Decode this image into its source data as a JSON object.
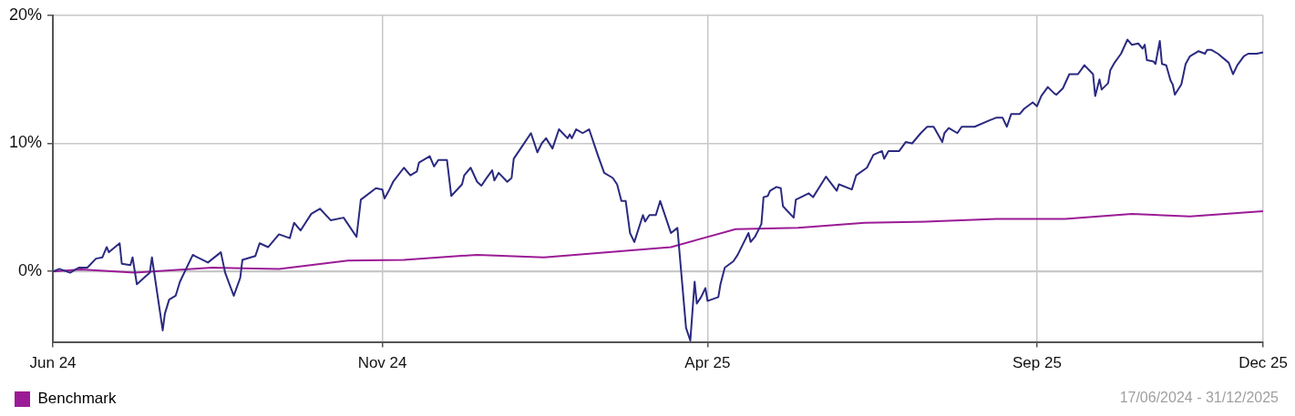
{
  "chart_data": {
    "type": "line",
    "xlim": [
      "2024-06-17",
      "2025-12-31"
    ],
    "ylim": [
      -5.5,
      20
    ],
    "xticks": [
      {
        "value": "2024-06-17",
        "label": "Jun 24"
      },
      {
        "value": "2024-11-17",
        "label": "Nov 24"
      },
      {
        "value": "2025-04-17",
        "label": "Apr 25"
      },
      {
        "value": "2025-09-17",
        "label": "Sep 25"
      },
      {
        "value": "2025-12-31",
        "label": "Dec 25"
      }
    ],
    "yticks": [
      {
        "value": 0,
        "label": "0%"
      },
      {
        "value": 10,
        "label": "10%"
      },
      {
        "value": 20,
        "label": "20%"
      }
    ],
    "grid": true,
    "legend": "bottom left",
    "ref_lines": [
      {
        "axis": "y",
        "value": 0,
        "color": "#c8c8c8"
      }
    ],
    "annotations": [
      "17/06/2024 - 31/12/2025"
    ],
    "series": [
      {
        "color": "#2b2a80",
        "x": [
          "2024-06-17",
          "2024-06-20",
          "2024-06-25",
          "2024-06-29",
          "2024-07-03",
          "2024-07-07",
          "2024-07-10",
          "2024-07-12",
          "2024-07-13",
          "2024-07-18",
          "2024-07-19",
          "2024-07-23",
          "2024-07-24",
          "2024-07-26",
          "2024-08-01",
          "2024-08-02",
          "2024-08-07",
          "2024-08-08",
          "2024-08-10",
          "2024-08-13",
          "2024-08-15",
          "2024-08-21",
          "2024-08-22",
          "2024-08-28",
          "2024-09-03",
          "2024-09-05",
          "2024-09-09",
          "2024-09-12",
          "2024-09-13",
          "2024-09-19",
          "2024-09-21",
          "2024-09-25",
          "2024-09-30",
          "2024-10-05",
          "2024-10-07",
          "2024-10-10",
          "2024-10-15",
          "2024-10-19",
          "2024-10-24",
          "2024-10-30",
          "2024-11-05",
          "2024-11-07",
          "2024-11-14",
          "2024-11-17",
          "2024-11-18",
          "2024-11-20",
          "2024-11-22",
          "2024-11-27",
          "2024-11-30",
          "2024-12-03",
          "2024-12-04",
          "2024-12-09",
          "2024-12-11",
          "2024-12-13",
          "2024-12-17",
          "2024-12-19",
          "2024-12-24",
          "2024-12-25",
          "2024-12-28",
          "2024-12-31",
          "2025-01-02",
          "2025-01-04",
          "2025-01-07",
          "2025-01-08",
          "2025-01-10",
          "2025-01-14",
          "2025-01-16",
          "2025-01-17",
          "2025-01-21",
          "2025-01-25",
          "2025-01-28",
          "2025-01-30",
          "2025-02-01",
          "2025-02-04",
          "2025-02-07",
          "2025-02-11",
          "2025-02-12",
          "2025-02-13",
          "2025-02-15",
          "2025-02-18",
          "2025-02-21",
          "2025-02-25",
          "2025-02-28",
          "2025-03-04",
          "2025-03-06",
          "2025-03-08",
          "2025-03-10",
          "2025-03-12",
          "2025-03-14",
          "2025-03-18",
          "2025-03-19",
          "2025-03-21",
          "2025-03-24",
          "2025-03-26",
          "2025-03-29",
          "2025-03-31",
          "2025-04-03",
          "2025-04-07",
          "2025-04-09",
          "2025-04-11",
          "2025-04-12",
          "2025-04-14",
          "2025-04-16",
          "2025-04-17",
          "2025-04-22",
          "2025-04-23",
          "2025-04-25",
          "2025-04-29",
          "2025-05-01",
          "2025-05-06",
          "2025-05-07",
          "2025-05-09",
          "2025-05-12",
          "2025-05-13",
          "2025-05-15",
          "2025-05-16",
          "2025-05-19",
          "2025-05-21",
          "2025-05-22",
          "2025-05-27",
          "2025-05-28",
          "2025-06-03",
          "2025-06-05",
          "2025-06-11",
          "2025-06-16",
          "2025-06-17",
          "2025-06-23",
          "2025-06-25",
          "2025-06-30",
          "2025-07-03",
          "2025-07-07",
          "2025-07-08",
          "2025-07-10",
          "2025-07-15",
          "2025-07-18",
          "2025-07-21",
          "2025-07-25",
          "2025-07-28",
          "2025-07-31",
          "2025-08-04",
          "2025-08-05",
          "2025-08-07",
          "2025-08-11",
          "2025-08-13",
          "2025-08-19",
          "2025-08-26",
          "2025-08-29",
          "2025-09-01",
          "2025-09-03",
          "2025-09-05",
          "2025-09-09",
          "2025-09-11",
          "2025-09-15",
          "2025-09-17",
          "2025-09-19",
          "2025-09-22",
          "2025-09-25",
          "2025-09-26",
          "2025-09-29",
          "2025-10-02",
          "2025-10-06",
          "2025-10-09",
          "2025-10-13",
          "2025-10-14",
          "2025-10-16",
          "2025-10-17",
          "2025-10-20",
          "2025-10-21",
          "2025-10-23",
          "2025-10-26",
          "2025-10-29",
          "2025-10-31",
          "2025-11-03",
          "2025-11-05",
          "2025-11-06",
          "2025-11-07",
          "2025-11-10",
          "2025-11-11",
          "2025-11-13",
          "2025-11-14",
          "2025-11-16",
          "2025-11-18",
          "2025-11-19",
          "2025-11-20",
          "2025-11-23",
          "2025-11-25",
          "2025-11-27",
          "2025-12-01",
          "2025-12-04",
          "2025-12-05",
          "2025-12-07",
          "2025-12-10",
          "2025-12-15",
          "2025-12-17",
          "2025-12-19",
          "2025-12-22",
          "2025-12-24",
          "2025-12-28",
          "2025-12-31"
        ],
        "values": [
          0.0,
          0.2,
          -0.1,
          0.3,
          0.3,
          1.0,
          1.1,
          1.9,
          1.5,
          2.2,
          0.6,
          0.5,
          1.1,
          -1.0,
          -0.1,
          1.1,
          -4.6,
          -3.3,
          -2.2,
          -1.9,
          -0.8,
          1.3,
          1.2,
          0.7,
          1.5,
          -0.1,
          -1.9,
          -0.5,
          0.9,
          1.2,
          2.2,
          1.9,
          2.9,
          2.6,
          3.8,
          3.2,
          4.5,
          4.9,
          4.0,
          4.2,
          2.7,
          5.6,
          6.5,
          6.4,
          5.7,
          6.3,
          7.0,
          8.1,
          7.5,
          7.8,
          8.5,
          9.0,
          8.2,
          8.7,
          8.7,
          5.9,
          6.8,
          7.5,
          8.1,
          7.0,
          6.7,
          7.2,
          7.9,
          7.1,
          7.7,
          7.0,
          7.3,
          8.8,
          9.8,
          10.8,
          9.3,
          10.0,
          10.4,
          9.6,
          11.1,
          10.4,
          10.7,
          10.4,
          11.1,
          10.8,
          11.1,
          9.1,
          7.7,
          7.3,
          6.8,
          5.5,
          5.5,
          3.0,
          2.3,
          4.4,
          3.9,
          4.4,
          4.4,
          5.5,
          4.0,
          3.0,
          3.4,
          -4.4,
          -5.4,
          -0.8,
          -2.5,
          -2.0,
          -1.3,
          -2.3,
          -2.0,
          -1.0,
          0.3,
          0.8,
          1.3,
          3.0,
          2.3,
          2.7,
          3.7,
          5.8,
          5.9,
          6.3,
          6.6,
          6.5,
          5.1,
          4.2,
          5.6,
          6.1,
          5.8,
          7.4,
          6.3,
          6.8,
          6.4,
          7.5,
          8.1,
          9.1,
          9.4,
          8.8,
          9.4,
          9.4,
          10.1,
          10.0,
          10.8,
          11.3,
          11.3,
          10.1,
          10.8,
          11.2,
          10.8,
          11.3,
          11.3,
          11.8,
          12.0,
          12.0,
          11.3,
          12.3,
          12.3,
          12.7,
          13.2,
          12.9,
          13.7,
          14.4,
          13.9,
          13.8,
          14.3,
          15.4,
          15.4,
          16.1,
          15.4,
          13.7,
          15.0,
          14.2,
          14.7,
          15.7,
          16.3,
          17.0,
          18.1,
          17.7,
          17.8,
          17.4,
          17.7,
          16.5,
          16.4,
          16.2,
          18.0,
          16.2,
          16.1,
          14.9,
          14.6,
          13.8,
          14.6,
          16.2,
          16.8,
          17.2,
          17.0,
          17.3,
          17.3,
          17.0,
          16.3,
          15.4,
          16.1,
          16.8,
          17.0,
          17.0,
          17.1
        ]
      },
      {
        "name": "Benchmark",
        "color": "#9b1b96",
        "x": [
          "2024-06-17",
          "2024-06-30",
          "2024-07-25",
          "2024-08-30",
          "2024-09-30",
          "2024-11-01",
          "2024-11-27",
          "2024-12-31",
          "2025-01-31",
          "2025-03-31",
          "2025-04-30",
          "2025-05-29",
          "2025-06-29",
          "2025-07-30",
          "2025-08-29",
          "2025-09-30",
          "2025-10-31",
          "2025-11-27",
          "2025-12-31"
        ],
        "values": [
          0.0,
          0.15,
          -0.1,
          0.3,
          0.2,
          0.85,
          0.9,
          1.3,
          1.1,
          1.9,
          3.3,
          3.4,
          3.8,
          3.9,
          4.1,
          4.1,
          4.5,
          4.3,
          4.7
        ]
      }
    ]
  }
}
